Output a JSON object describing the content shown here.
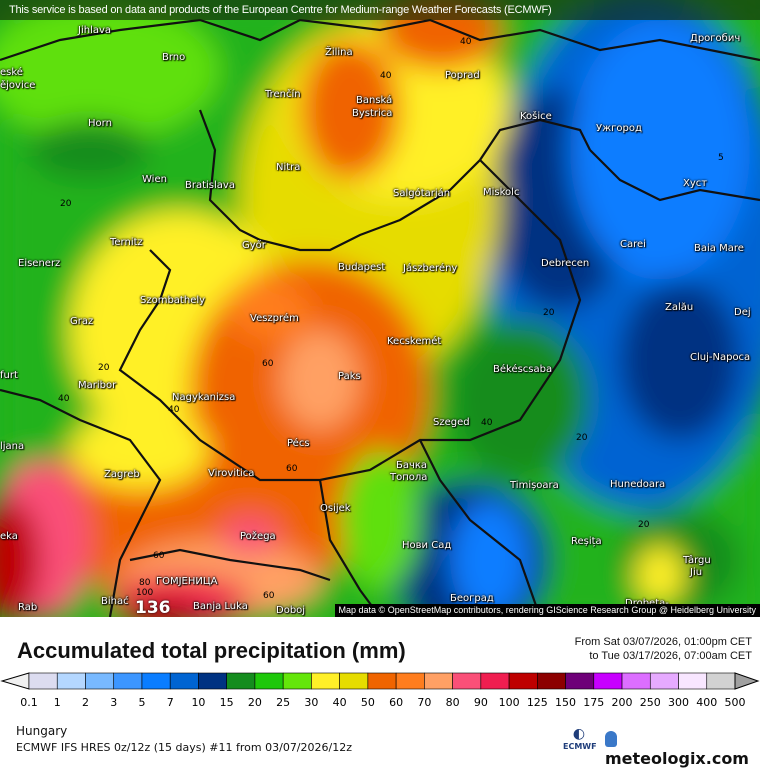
{
  "banner": "This service is based on data and products of the European Centre for Medium-range Weather Forecasts (ECMWF)",
  "map_credit": "Map data © OpenStreetMap contributors, rendering GIScience Research Group @ Heidelberg University",
  "cities": [
    "Jihlava",
    "Brno",
    "Žilina",
    "Poprad",
    "Дрогобич",
    "eské",
    "ějovice",
    "Horn",
    "Trenčín",
    "Banská",
    "Bystrica",
    "Košice",
    "Ужгород",
    "Wien",
    "Bratislava",
    "Nitra",
    "Salgótarján",
    "Miskolc",
    "Хуст",
    "Ternitz",
    "Győr",
    "Budapest",
    "Jászberény",
    "Debrecen",
    "Carei",
    "Baia Mare",
    "Eisenerz",
    "Szombathely",
    "Veszprém",
    "Zalău",
    "Dej",
    "Graz",
    "Kecskemét",
    "Cluj-Napoca",
    "furt",
    "Maribor",
    "Paks",
    "Békéscsaba",
    "Nagykanizsa",
    "Szeged",
    "Pécs",
    "ljana",
    "Zagreb",
    "Virovitica",
    "Бачка",
    "Топола",
    "Timișoara",
    "Hunedoara",
    "Osijek",
    "Požega",
    "Нови Сад",
    "Reșița",
    "Târgu",
    "Jiu",
    "eka",
    "ГОМЈЕНИЦА",
    "Bihać",
    "Banja Luka",
    "Doboj",
    "Rab",
    "Београд",
    "Drobeta-"
  ],
  "contour_labels": [
    "40",
    "40",
    "20",
    "5",
    "20",
    "60",
    "40",
    "40",
    "20",
    "40",
    "20",
    "60",
    "20",
    "60",
    "60",
    "80",
    "100"
  ],
  "max_value": "136",
  "title": "Accumulated total precipitation (mm)",
  "period_from": "From Sat 03/07/2026, 01:00pm CET",
  "period_to": "to Tue 03/17/2026, 07:00am CET",
  "legend": {
    "ticks": [
      "0.1",
      "1",
      "2",
      "3",
      "5",
      "7",
      "10",
      "15",
      "20",
      "25",
      "30",
      "40",
      "50",
      "60",
      "70",
      "80",
      "90",
      "100",
      "125",
      "150",
      "175",
      "200",
      "250",
      "300",
      "400",
      "500"
    ],
    "colors": [
      "#dcdcf0",
      "#b4d7ff",
      "#78b9ff",
      "#3c96ff",
      "#0a7dff",
      "#0064d2",
      "#003282",
      "#148c1e",
      "#1ec80a",
      "#64e60a",
      "#fff028",
      "#e6dc00",
      "#f06400",
      "#ff7d1e",
      "#ffa064",
      "#fa5078",
      "#f01e50",
      "#be0000",
      "#8c0000",
      "#6e0078",
      "#c800ff",
      "#dc6eff",
      "#e6aaff",
      "#f8e6ff",
      "#d2d2d2"
    ],
    "under_color": "#f0f0f0",
    "over_color": "#a0a0a0"
  },
  "region": "Hungary",
  "model": "ECMWF IFS HRES 0z/12z (15 days) #11 from  03/07/2026/12z",
  "logos": {
    "ecmwf": "ECMWF",
    "meteologix": "meteologix.com"
  }
}
